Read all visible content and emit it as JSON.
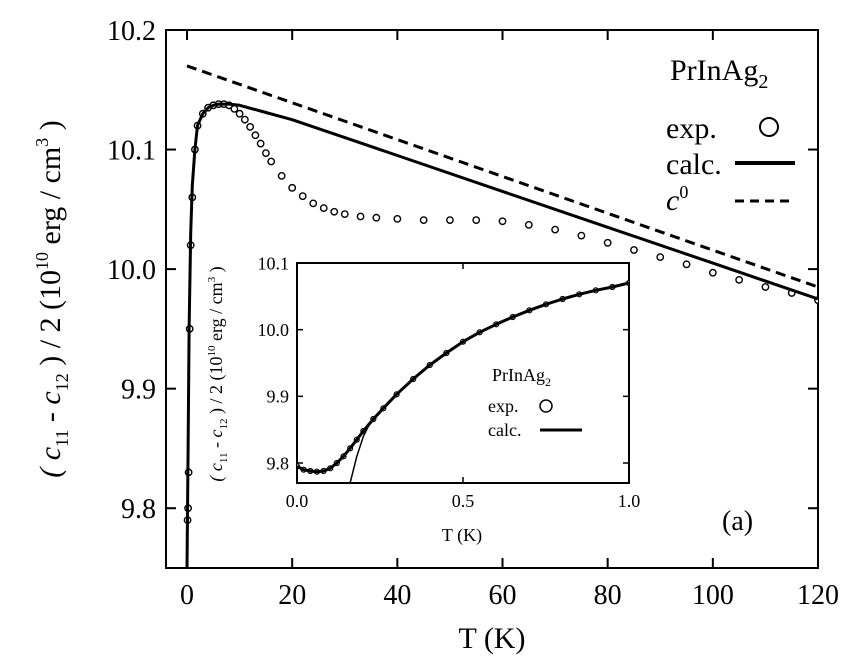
{
  "chart_data": [
    {
      "type": "line",
      "title": "",
      "xlabel": "T (K)",
      "ylabel_parts": [
        "( c",
        "11",
        " - c",
        "12",
        " ) / 2 (10",
        "10",
        " erg / cm",
        "3",
        " )"
      ],
      "xlim": [
        -4,
        120
      ],
      "ylim": [
        9.75,
        10.2
      ],
      "xticks": [
        0,
        20,
        40,
        60,
        80,
        100,
        120
      ],
      "yticks": [
        9.8,
        9.9,
        10.0,
        10.1,
        10.2
      ],
      "xtick_labels": [
        "0",
        "20",
        "40",
        "60",
        "80",
        "100",
        "120"
      ],
      "ytick_labels": [
        "9.8",
        "9.9",
        "10.0",
        "10.1",
        "10.2"
      ],
      "grid": false,
      "legend_position": "top-right",
      "legend": {
        "title_main": "PrInAg",
        "title_sub": "2",
        "entries": [
          {
            "label": "exp.",
            "marker": "open-circle"
          },
          {
            "label": "calc.",
            "style": "solid"
          },
          {
            "label": "c",
            "label_sup": "0",
            "style": "dashed"
          }
        ]
      },
      "panel_label": "(a)",
      "series": [
        {
          "name": "exp.",
          "style": "markers",
          "x": [
            0.1,
            0.2,
            0.3,
            0.5,
            0.7,
            1,
            1.5,
            2,
            3,
            4,
            5,
            6,
            7,
            8,
            9,
            10,
            11,
            12,
            13,
            14,
            15,
            16,
            18,
            20,
            22,
            24,
            26,
            28,
            30,
            33,
            36,
            40,
            45,
            50,
            55,
            60,
            65,
            70,
            75,
            80,
            85,
            90,
            95,
            100,
            105,
            110,
            115,
            120
          ],
          "y": [
            9.79,
            9.8,
            9.83,
            9.95,
            10.02,
            10.06,
            10.1,
            10.12,
            10.13,
            10.135,
            10.137,
            10.138,
            10.138,
            10.137,
            10.134,
            10.13,
            10.125,
            10.119,
            10.112,
            10.105,
            10.097,
            10.09,
            10.078,
            10.068,
            10.061,
            10.055,
            10.051,
            10.048,
            10.046,
            10.044,
            10.043,
            10.042,
            10.041,
            10.041,
            10.041,
            10.04,
            10.037,
            10.033,
            10.028,
            10.022,
            10.016,
            10.01,
            10.004,
            9.997,
            9.991,
            9.985,
            9.98,
            9.974
          ]
        },
        {
          "name": "calc.",
          "style": "solid",
          "x": [
            0,
            0.2,
            0.4,
            0.7,
            1,
            1.5,
            2,
            3,
            4,
            5,
            6,
            7,
            8,
            10,
            15,
            20,
            30,
            40,
            60,
            80,
            100,
            120
          ],
          "y": [
            9.75,
            9.85,
            9.95,
            10.03,
            10.07,
            10.1,
            10.12,
            10.13,
            10.135,
            10.137,
            10.138,
            10.138,
            10.138,
            10.137,
            10.131,
            10.125,
            10.11,
            10.095,
            10.065,
            10.035,
            10.005,
            9.975
          ]
        },
        {
          "name": "c0",
          "style": "dashed",
          "x": [
            0,
            120
          ],
          "y": [
            10.17,
            9.985
          ]
        }
      ]
    },
    {
      "type": "line",
      "title": "",
      "xlabel": "T (K)",
      "ylabel_parts": [
        "( c",
        "11",
        " - c",
        "12",
        " ) / 2 (10",
        "10",
        " erg / cm",
        "3",
        " )"
      ],
      "xlim": [
        0,
        1
      ],
      "ylim": [
        9.77,
        10.1
      ],
      "xticks": [
        0,
        0.5,
        1
      ],
      "yticks": [
        9.8,
        9.9,
        10.0,
        10.1
      ],
      "xtick_labels": [
        "0.0",
        "0.5",
        "1.0"
      ],
      "ytick_labels": [
        "9.8",
        "9.9",
        "10.0",
        "10.1"
      ],
      "grid": false,
      "legend_position": "center-right",
      "legend": {
        "title_main": "PrInAg",
        "title_sub": "2",
        "entries": [
          {
            "label": "exp.",
            "marker": "open-circle"
          },
          {
            "label": "calc.",
            "style": "solid"
          }
        ]
      },
      "series": [
        {
          "name": "exp.",
          "style": "markers",
          "x": [
            0,
            0.02,
            0.04,
            0.06,
            0.08,
            0.1,
            0.12,
            0.14,
            0.16,
            0.18,
            0.2,
            0.23,
            0.26,
            0.3,
            0.35,
            0.4,
            0.45,
            0.5,
            0.55,
            0.6,
            0.65,
            0.7,
            0.75,
            0.8,
            0.85,
            0.9,
            0.95,
            1.0
          ],
          "y": [
            9.795,
            9.79,
            9.788,
            9.787,
            9.788,
            9.792,
            9.8,
            9.81,
            9.822,
            9.835,
            9.848,
            9.866,
            9.882,
            9.903,
            9.926,
            9.947,
            9.965,
            9.982,
            9.996,
            10.008,
            10.019,
            10.029,
            10.038,
            10.046,
            10.053,
            10.059,
            10.064,
            10.07
          ]
        },
        {
          "name": "calc.",
          "style": "solid",
          "x": [
            0,
            0.02,
            0.04,
            0.06,
            0.08,
            0.1,
            0.12,
            0.14,
            0.16,
            0.18,
            0.2,
            0.23,
            0.26,
            0.3,
            0.35,
            0.4,
            0.45,
            0.5,
            0.55,
            0.6,
            0.65,
            0.7,
            0.75,
            0.8,
            0.85,
            0.9,
            0.95,
            1.0
          ],
          "y": [
            9.795,
            9.79,
            9.788,
            9.787,
            9.788,
            9.792,
            9.8,
            9.81,
            9.822,
            9.835,
            9.848,
            9.866,
            9.882,
            9.903,
            9.926,
            9.947,
            9.965,
            9.982,
            9.996,
            10.008,
            10.019,
            10.029,
            10.038,
            10.046,
            10.053,
            10.059,
            10.064,
            10.07
          ]
        },
        {
          "name": "calc. (thin branch)",
          "style": "solid-thin",
          "x": [
            0.16,
            0.18,
            0.2,
            0.22,
            0.25
          ],
          "y": [
            9.77,
            9.81,
            9.84,
            9.86,
            9.875
          ]
        }
      ]
    }
  ]
}
